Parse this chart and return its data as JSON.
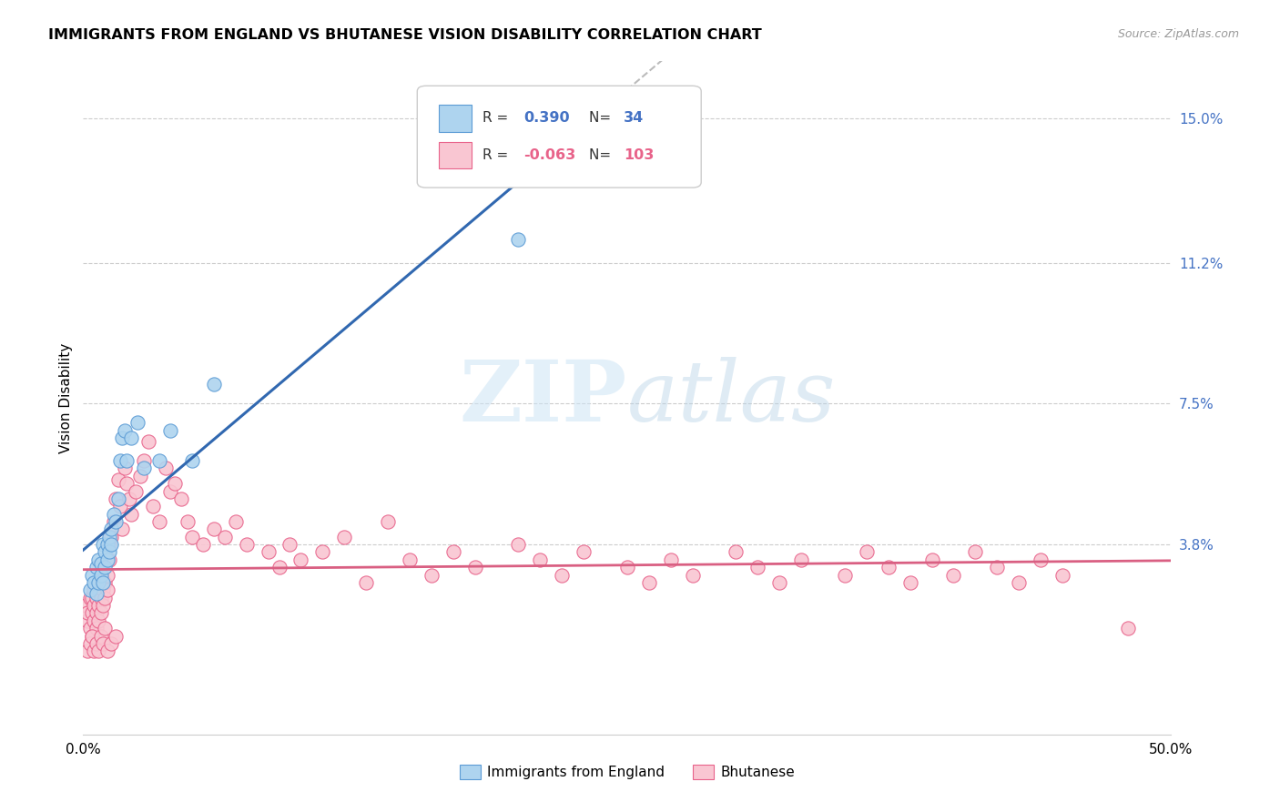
{
  "title": "IMMIGRANTS FROM ENGLAND VS BHUTANESE VISION DISABILITY CORRELATION CHART",
  "source": "Source: ZipAtlas.com",
  "ylabel": "Vision Disability",
  "xlim": [
    0.0,
    0.5
  ],
  "ylim": [
    -0.012,
    0.165
  ],
  "yticks": [
    0.038,
    0.075,
    0.112,
    0.15
  ],
  "ytick_labels": [
    "3.8%",
    "7.5%",
    "11.2%",
    "15.0%"
  ],
  "xticks": [
    0.0,
    0.1,
    0.2,
    0.3,
    0.4,
    0.5
  ],
  "xtick_labels": [
    "0.0%",
    "",
    "",
    "",
    "",
    "50.0%"
  ],
  "blue_color": "#aed4ef",
  "blue_edge": "#5b9bd5",
  "pink_color": "#f9c6d2",
  "pink_edge": "#e8628a",
  "trend_blue": "#3168b0",
  "trend_pink": "#d95f82",
  "trend_gray": "#bbbbbb",
  "watermark": "ZIPatlas",
  "blue_scatter_x": [
    0.003,
    0.004,
    0.005,
    0.006,
    0.006,
    0.007,
    0.007,
    0.008,
    0.008,
    0.009,
    0.009,
    0.01,
    0.01,
    0.011,
    0.011,
    0.012,
    0.012,
    0.013,
    0.013,
    0.014,
    0.015,
    0.016,
    0.017,
    0.018,
    0.019,
    0.02,
    0.022,
    0.025,
    0.028,
    0.035,
    0.04,
    0.05,
    0.06,
    0.2
  ],
  "blue_scatter_y": [
    0.026,
    0.03,
    0.028,
    0.032,
    0.025,
    0.034,
    0.028,
    0.033,
    0.03,
    0.038,
    0.028,
    0.032,
    0.036,
    0.038,
    0.034,
    0.04,
    0.036,
    0.042,
    0.038,
    0.046,
    0.044,
    0.05,
    0.06,
    0.066,
    0.068,
    0.06,
    0.066,
    0.07,
    0.058,
    0.06,
    0.068,
    0.06,
    0.08,
    0.118
  ],
  "pink_scatter_x": [
    0.001,
    0.002,
    0.002,
    0.003,
    0.003,
    0.004,
    0.004,
    0.004,
    0.005,
    0.005,
    0.005,
    0.006,
    0.006,
    0.006,
    0.007,
    0.007,
    0.007,
    0.008,
    0.008,
    0.008,
    0.009,
    0.009,
    0.01,
    0.01,
    0.011,
    0.011,
    0.012,
    0.012,
    0.013,
    0.014,
    0.015,
    0.016,
    0.017,
    0.018,
    0.019,
    0.02,
    0.021,
    0.022,
    0.024,
    0.026,
    0.028,
    0.03,
    0.032,
    0.035,
    0.038,
    0.04,
    0.042,
    0.045,
    0.048,
    0.05,
    0.055,
    0.06,
    0.065,
    0.07,
    0.075,
    0.085,
    0.09,
    0.095,
    0.1,
    0.11,
    0.12,
    0.13,
    0.14,
    0.15,
    0.16,
    0.17,
    0.18,
    0.2,
    0.21,
    0.22,
    0.23,
    0.25,
    0.26,
    0.27,
    0.28,
    0.3,
    0.31,
    0.32,
    0.33,
    0.35,
    0.36,
    0.37,
    0.38,
    0.39,
    0.4,
    0.41,
    0.42,
    0.43,
    0.44,
    0.45,
    0.002,
    0.003,
    0.004,
    0.005,
    0.006,
    0.007,
    0.008,
    0.009,
    0.01,
    0.011,
    0.013,
    0.015,
    0.48
  ],
  "pink_scatter_y": [
    0.022,
    0.018,
    0.02,
    0.016,
    0.024,
    0.014,
    0.02,
    0.024,
    0.018,
    0.022,
    0.026,
    0.016,
    0.02,
    0.024,
    0.018,
    0.022,
    0.026,
    0.02,
    0.024,
    0.028,
    0.022,
    0.026,
    0.024,
    0.028,
    0.03,
    0.026,
    0.034,
    0.038,
    0.04,
    0.044,
    0.05,
    0.055,
    0.048,
    0.042,
    0.058,
    0.054,
    0.05,
    0.046,
    0.052,
    0.056,
    0.06,
    0.065,
    0.048,
    0.044,
    0.058,
    0.052,
    0.054,
    0.05,
    0.044,
    0.04,
    0.038,
    0.042,
    0.04,
    0.044,
    0.038,
    0.036,
    0.032,
    0.038,
    0.034,
    0.036,
    0.04,
    0.028,
    0.044,
    0.034,
    0.03,
    0.036,
    0.032,
    0.038,
    0.034,
    0.03,
    0.036,
    0.032,
    0.028,
    0.034,
    0.03,
    0.036,
    0.032,
    0.028,
    0.034,
    0.03,
    0.036,
    0.032,
    0.028,
    0.034,
    0.03,
    0.036,
    0.032,
    0.028,
    0.034,
    0.03,
    0.01,
    0.012,
    0.014,
    0.01,
    0.012,
    0.01,
    0.014,
    0.012,
    0.016,
    0.01,
    0.012,
    0.014,
    0.016
  ]
}
